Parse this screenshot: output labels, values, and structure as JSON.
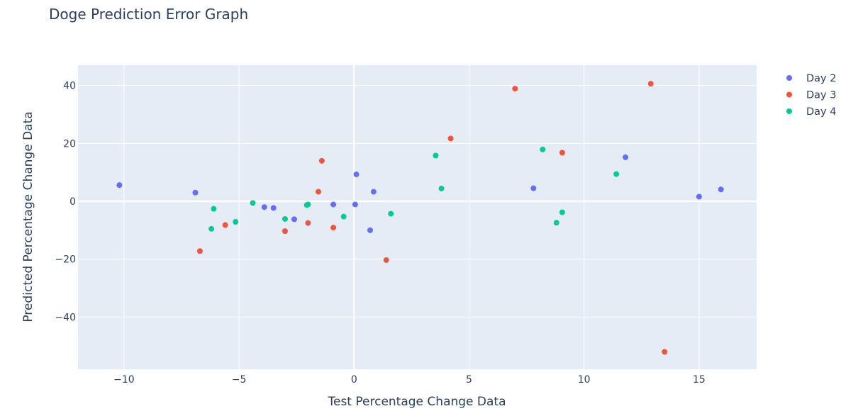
{
  "chart_data": {
    "type": "scatter",
    "title": "Doge Prediction Error Graph",
    "xlabel": "Test Percentage Change Data",
    "ylabel": "Predicted Percentage Change Data",
    "xlim": [
      -12,
      17.5
    ],
    "ylim": [
      -58,
      47
    ],
    "xticks": [
      -10,
      -5,
      0,
      5,
      10,
      15
    ],
    "yticks": [
      -40,
      -20,
      0,
      20,
      40
    ],
    "ytick_labels": [
      "−40",
      "−20",
      "0",
      "20",
      "40"
    ],
    "xtick_labels": [
      "−10",
      "−5",
      "0",
      "5",
      "10",
      "15"
    ],
    "grid": true,
    "legend_position": "top-right",
    "colors": {
      "plot_bg": "#e5ecf6",
      "grid": "#ffffff",
      "text": "#2a3f5f"
    },
    "series": [
      {
        "name": "Day 2",
        "color": "#636efa",
        "x": [
          -10.2,
          -6.9,
          -3.9,
          -3.5,
          -2.6,
          -0.9,
          0.1,
          0.05,
          0.7,
          0.85,
          7.8,
          11.8,
          15.0,
          15.95
        ],
        "y": [
          5.6,
          3.0,
          -2.0,
          -2.3,
          -6.2,
          -1.1,
          9.3,
          -1.1,
          -10.0,
          3.3,
          4.5,
          15.2,
          1.6,
          4.1
        ]
      },
      {
        "name": "Day 3",
        "color": "#ef553b",
        "x": [
          -6.7,
          -5.6,
          -3.0,
          -2.0,
          -1.55,
          -1.4,
          -0.9,
          1.4,
          4.2,
          7.0,
          9.05,
          12.9,
          13.5
        ],
        "y": [
          -17.2,
          -8.2,
          -10.3,
          -7.5,
          3.3,
          14.0,
          -9.1,
          -20.3,
          21.7,
          38.9,
          16.8,
          40.6,
          -52.0
        ]
      },
      {
        "name": "Day 4",
        "color": "#00cc96",
        "x": [
          -6.2,
          -6.1,
          -5.15,
          -4.4,
          -3.0,
          -2.0,
          -2.05,
          -0.45,
          1.6,
          3.55,
          3.8,
          8.2,
          8.8,
          9.05,
          11.4
        ],
        "y": [
          -9.5,
          -2.6,
          -7.1,
          -0.6,
          -6.1,
          -1.1,
          -1.3,
          -5.3,
          -4.3,
          15.8,
          4.4,
          17.9,
          -7.4,
          -3.8,
          9.4
        ]
      }
    ]
  }
}
